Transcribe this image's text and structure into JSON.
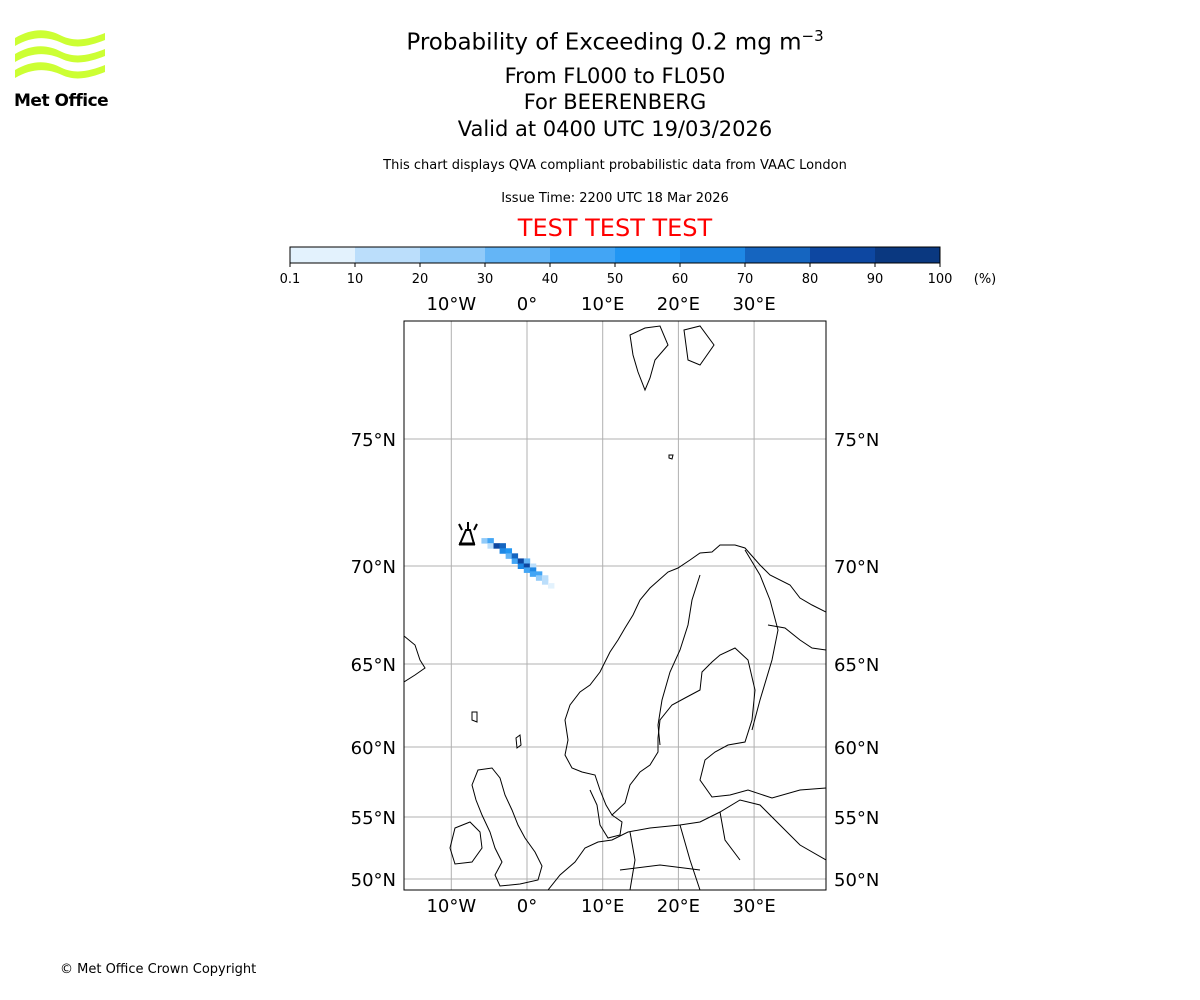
{
  "logo": {
    "text": "Met Office",
    "color": "#ccff33"
  },
  "header": {
    "title": "Probability of Exceeding 0.2 mg m",
    "title_exponent": "−3",
    "levels": "From FL000 to FL050",
    "volcano": "For BEERENBERG",
    "valid": "Valid at 0400 UTC 19/03/2026",
    "note": "This chart displays QVA compliant probabilistic data from VAAC London",
    "issue": "Issue Time: 2200 UTC 18 Mar 2026",
    "test": "TEST TEST TEST",
    "test_color": "#ff0000"
  },
  "footer": {
    "copyright": "© Met Office Crown Copyright"
  },
  "chart_data": {
    "type": "heatmap",
    "title": "Probability of Exceeding 0.2 mg m-3",
    "colorbar": {
      "boundaries": [
        "0.1",
        "10",
        "20",
        "30",
        "40",
        "50",
        "60",
        "70",
        "80",
        "90",
        "100"
      ],
      "unit": "(%)",
      "colors": [
        "#e3f2fd",
        "#bbdefb",
        "#90caf9",
        "#64b5f6",
        "#42a5f5",
        "#2196f3",
        "#1e88e5",
        "#1565c0",
        "#0d47a1",
        "#0a3880"
      ]
    },
    "lon_ticks": [
      {
        "v": -10,
        "label": "10°W"
      },
      {
        "v": 0,
        "label": "0°"
      },
      {
        "v": 10,
        "label": "10°E"
      },
      {
        "v": 20,
        "label": "20°E"
      },
      {
        "v": 30,
        "label": "30°E"
      }
    ],
    "lat_ticks": [
      {
        "v": 75,
        "label": "75°N"
      },
      {
        "v": 70,
        "label": "70°N"
      },
      {
        "v": 65,
        "label": "65°N"
      },
      {
        "v": 60,
        "label": "60°N"
      },
      {
        "v": 55,
        "label": "55°N"
      },
      {
        "v": 50,
        "label": "50°N"
      }
    ],
    "volcano": {
      "name": "BEERENBERG",
      "lon": -8.2,
      "lat": 71.1
    },
    "plume_cells": [
      {
        "lon": -5.6,
        "lat": 71.0,
        "p": 20
      },
      {
        "lon": -4.8,
        "lat": 71.0,
        "p": 40
      },
      {
        "lon": -4.8,
        "lat": 70.8,
        "p": 15
      },
      {
        "lon": -4.0,
        "lat": 70.8,
        "p": 85
      },
      {
        "lon": -3.2,
        "lat": 70.8,
        "p": 75
      },
      {
        "lon": -3.2,
        "lat": 70.6,
        "p": 60
      },
      {
        "lon": -2.4,
        "lat": 70.6,
        "p": 55
      },
      {
        "lon": -2.4,
        "lat": 70.4,
        "p": 30
      },
      {
        "lon": -1.6,
        "lat": 70.4,
        "p": 75
      },
      {
        "lon": -1.6,
        "lat": 70.2,
        "p": 45
      },
      {
        "lon": -0.8,
        "lat": 70.2,
        "p": 80
      },
      {
        "lon": -0.8,
        "lat": 70.0,
        "p": 60
      },
      {
        "lon": 0.0,
        "lat": 70.2,
        "p": 35
      },
      {
        "lon": 0.0,
        "lat": 70.0,
        "p": 80
      },
      {
        "lon": 0.0,
        "lat": 69.8,
        "p": 45
      },
      {
        "lon": 0.8,
        "lat": 70.0,
        "p": 15
      },
      {
        "lon": 0.8,
        "lat": 69.8,
        "p": 65
      },
      {
        "lon": 0.8,
        "lat": 69.6,
        "p": 45
      },
      {
        "lon": 1.6,
        "lat": 69.6,
        "p": 40
      },
      {
        "lon": 1.6,
        "lat": 69.4,
        "p": 20
      },
      {
        "lon": 2.4,
        "lat": 69.4,
        "p": 15
      },
      {
        "lon": 2.4,
        "lat": 69.2,
        "p": 10
      },
      {
        "lon": 3.2,
        "lat": 69.0,
        "p": 5
      }
    ]
  }
}
